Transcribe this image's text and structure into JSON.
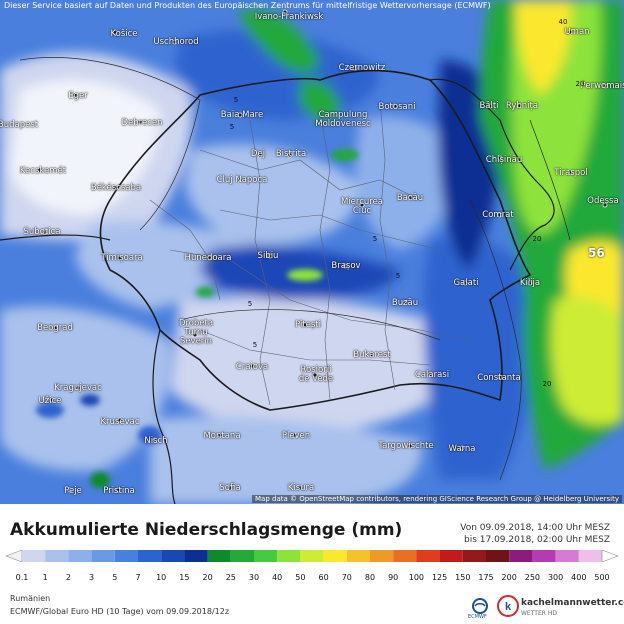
{
  "map": {
    "disclaimer": "Dieser Service basiert auf Daten und Produkten des Europäischen Zentrums für mittelfristige Wettervorhersage (ECMWF)",
    "attribution": "Map data © OpenStreetMap contributors, rendering GIScience Research Group @ Heidelberg University",
    "cities": [
      "Ivano-Frankiwsk",
      "Košice",
      "Uschhorod",
      "Czernowitz",
      "Uman",
      "Perwomaisk",
      "Eger",
      "Budapest",
      "Debrecen",
      "Baia Mare",
      "Botosani",
      "Bălți",
      "Rybnița",
      "Campulung Moldovenesc",
      "Dej",
      "Bistrita",
      "Chișinău",
      "Tiraspol",
      "Kecskemét",
      "Békéscsaba",
      "Cluj Napoca",
      "Miercurea Ciuc",
      "Bacău",
      "Comrat",
      "Odessa",
      "Subotica",
      "Timișoara",
      "Hunedoara",
      "Sibiu",
      "Brașov",
      "Galati",
      "Kilija",
      "Beograd",
      "Drobeta Turnu Severin",
      "Pitești",
      "Buzău",
      "Bukarest",
      "Calarasi",
      "Constanta",
      "Kragujevac",
      "Užice",
      "Craiova",
      "Roșiorii de Vede",
      "Krusevac",
      "Nisch",
      "Montana",
      "Pleven",
      "Targowischte",
      "Warna",
      "Sofia",
      "Kisura",
      "Peje",
      "Pristina"
    ],
    "isolines": [
      "5",
      "5",
      "5",
      "5",
      "5",
      "5",
      "20",
      "20",
      "20",
      "40"
    ],
    "peak_value": "56"
  },
  "footer": {
    "title": "Akkumulierte Niederschlagsmenge (mm)",
    "period_from": "Von 09.09.2018, 14:00 Uhr MESZ",
    "period_to": "bis 17.09.2018, 02:00 Uhr MESZ",
    "region": "Rumänien",
    "model_info": "ECMWF/Global Euro HD (10 Tage) vom 09.09.2018/12z",
    "ecmwf_logo_text": "ECMWF",
    "brand_name": "kachelmannwetter.com",
    "brand_sub": "WETTER HD"
  },
  "legend": {
    "ticks": [
      "0.1",
      "1",
      "2",
      "3",
      "5",
      "7",
      "10",
      "15",
      "20",
      "25",
      "30",
      "40",
      "50",
      "60",
      "70",
      "80",
      "90",
      "100",
      "125",
      "150",
      "175",
      "200",
      "250",
      "300",
      "400",
      "500"
    ],
    "colors": [
      "#cfd6ef",
      "#a9c1ec",
      "#8eb0ea",
      "#6a99e5",
      "#4a7fdd",
      "#2d63cf",
      "#1a47b6",
      "#0c2f92",
      "#0d8a2c",
      "#24a93a",
      "#47c940",
      "#8de33a",
      "#cdec36",
      "#fbe82d",
      "#f4c22a",
      "#ee9a27",
      "#e87022",
      "#df3d1d",
      "#c01c1c",
      "#931a1a",
      "#6f1414",
      "#8e1a7e",
      "#b43bb0",
      "#d57ad5",
      "#eebfe9",
      "#ffffff"
    ]
  }
}
